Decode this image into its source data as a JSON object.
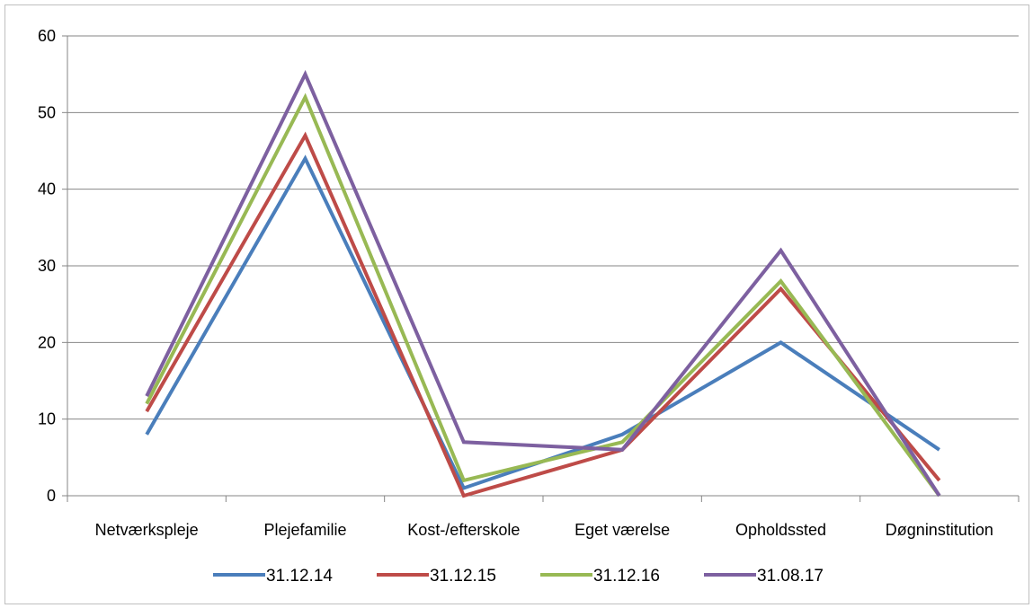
{
  "chart_data": {
    "type": "line",
    "title": "",
    "xlabel": "",
    "ylabel": "",
    "categories": [
      "Netværkspleje",
      "Plejefamilie",
      "Kost-/efterskole",
      "Eget værelse",
      "Opholdssted",
      "Døgninstitution"
    ],
    "ylim": [
      0,
      60
    ],
    "yticks": [
      "0",
      "10",
      "20",
      "30",
      "40",
      "50",
      "60"
    ],
    "grid": true,
    "legend_position": "bottom",
    "series": [
      {
        "name": "31.12.14",
        "color": "#4a7ebb",
        "values": [
          8,
          44,
          1,
          8,
          20,
          6
        ]
      },
      {
        "name": "31.12.15",
        "color": "#be4b48",
        "values": [
          11,
          47,
          0,
          6,
          27,
          2
        ]
      },
      {
        "name": "31.12.16",
        "color": "#98b954",
        "values": [
          12,
          52,
          2,
          7,
          28,
          0
        ]
      },
      {
        "name": "31.08.17",
        "color": "#7d60a0",
        "values": [
          13,
          55,
          7,
          6,
          32,
          0
        ]
      }
    ]
  }
}
